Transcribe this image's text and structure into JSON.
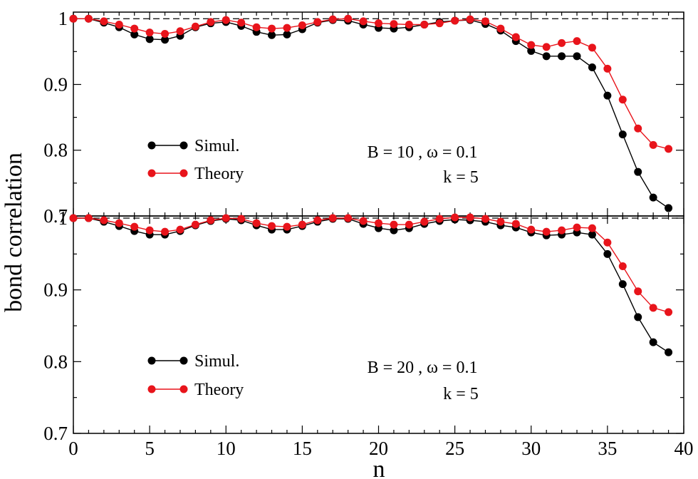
{
  "chart_data": [
    {
      "type": "line",
      "panel": "top",
      "ylabel": "bond correlation",
      "xlabel": "",
      "xlim": [
        0,
        40
      ],
      "ylim": [
        0.7,
        1.01
      ],
      "yticks": [
        0.7,
        0.8,
        0.9,
        1
      ],
      "ytick_labels": [
        "0.7",
        "0.8",
        "0.9",
        "1"
      ],
      "reference_line": 1,
      "annotation_line1": "B = 10 ,  ω = 0.1",
      "annotation_line2": "k = 5",
      "legend_position": "lower-left",
      "x": [
        0,
        1,
        2,
        3,
        4,
        5,
        6,
        7,
        8,
        9,
        10,
        11,
        12,
        13,
        14,
        15,
        16,
        17,
        18,
        19,
        20,
        21,
        22,
        23,
        24,
        25,
        26,
        27,
        28,
        29,
        30,
        31,
        32,
        33,
        34,
        35,
        36,
        37,
        38,
        39
      ],
      "series": [
        {
          "name": "Simul.",
          "color": "#000000",
          "values": [
            1.0,
            1.0,
            0.994,
            0.987,
            0.976,
            0.969,
            0.968,
            0.974,
            0.987,
            0.993,
            0.995,
            0.989,
            0.98,
            0.975,
            0.976,
            0.984,
            0.994,
            0.998,
            0.997,
            0.991,
            0.986,
            0.985,
            0.987,
            0.991,
            0.995,
            0.997,
            0.998,
            0.992,
            0.982,
            0.966,
            0.951,
            0.943,
            0.943,
            0.943,
            0.926,
            0.883,
            0.824,
            0.767,
            0.728,
            0.712
          ]
        },
        {
          "name": "Theory",
          "color": "#e8141b",
          "values": [
            1.0,
            1.0,
            0.996,
            0.991,
            0.985,
            0.979,
            0.977,
            0.981,
            0.988,
            0.995,
            0.998,
            0.994,
            0.987,
            0.985,
            0.986,
            0.99,
            0.995,
            0.999,
            1.0,
            0.996,
            0.993,
            0.992,
            0.991,
            0.991,
            0.993,
            0.997,
            0.999,
            0.996,
            0.985,
            0.972,
            0.96,
            0.957,
            0.963,
            0.966,
            0.956,
            0.924,
            0.877,
            0.833,
            0.808,
            0.802
          ]
        }
      ]
    },
    {
      "type": "line",
      "panel": "bottom",
      "ylabel": "",
      "xlabel": "n",
      "xlim": [
        0,
        40
      ],
      "ylim": [
        0.7,
        1.003
      ],
      "xticks": [
        0,
        5,
        10,
        15,
        20,
        25,
        30,
        35,
        40
      ],
      "xtick_labels": [
        "0",
        "5",
        "10",
        "15",
        "20",
        "25",
        "30",
        "35",
        "40"
      ],
      "yticks": [
        0.7,
        0.8,
        0.9,
        1
      ],
      "ytick_labels": [
        "0.7",
        "0.8",
        "0.9",
        "1"
      ],
      "reference_line": 1,
      "annotation_line1": "B = 20 ,  ω = 0.1",
      "annotation_line2": "k = 5",
      "legend_position": "lower-left",
      "x": [
        0,
        1,
        2,
        3,
        4,
        5,
        6,
        7,
        8,
        9,
        10,
        11,
        12,
        13,
        14,
        15,
        16,
        17,
        18,
        19,
        20,
        21,
        22,
        23,
        24,
        25,
        26,
        27,
        28,
        29,
        30,
        31,
        32,
        33,
        34,
        35,
        36,
        37,
        38,
        39
      ],
      "series": [
        {
          "name": "Simul.",
          "color": "#000000",
          "values": [
            1.0,
            1.0,
            0.995,
            0.989,
            0.982,
            0.977,
            0.977,
            0.982,
            0.99,
            0.996,
            0.999,
            0.997,
            0.99,
            0.984,
            0.984,
            0.989,
            0.995,
            0.999,
            0.999,
            0.992,
            0.986,
            0.983,
            0.986,
            0.992,
            0.996,
            0.998,
            0.997,
            0.995,
            0.99,
            0.987,
            0.98,
            0.976,
            0.977,
            0.98,
            0.977,
            0.95,
            0.908,
            0.862,
            0.827,
            0.813
          ]
        },
        {
          "name": "Theory",
          "color": "#e8141b",
          "values": [
            1.0,
            1.0,
            0.997,
            0.993,
            0.988,
            0.983,
            0.981,
            0.984,
            0.991,
            0.997,
            1.0,
            0.999,
            0.993,
            0.989,
            0.988,
            0.991,
            0.997,
            1.0,
            1.0,
            0.996,
            0.993,
            0.991,
            0.991,
            0.995,
            0.999,
            1.001,
            1.001,
            0.999,
            0.995,
            0.992,
            0.984,
            0.981,
            0.983,
            0.987,
            0.986,
            0.966,
            0.933,
            0.898,
            0.875,
            0.869
          ]
        }
      ]
    }
  ]
}
